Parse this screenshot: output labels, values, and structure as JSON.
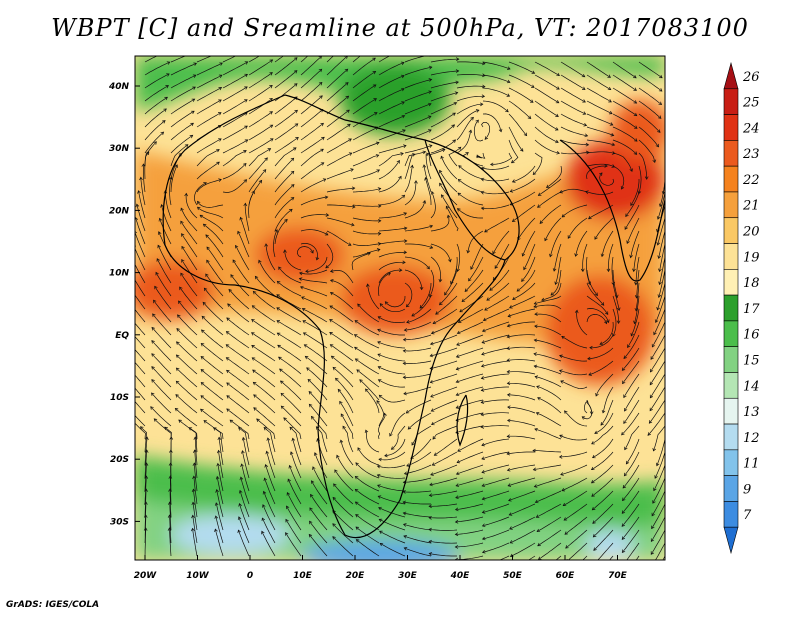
{
  "title": "WBPT [C] and Sreamline at 500hPa, VT: 2017083100",
  "footer": "GrADS: IGES/COLA",
  "lat_labels": [
    "40N",
    "30N",
    "20N",
    "10N",
    "EQ",
    "10S",
    "20S",
    "30S"
  ],
  "lon_labels": [
    "20W",
    "10W",
    "0",
    "10E",
    "20E",
    "30E",
    "40E",
    "50E",
    "60E",
    "70E"
  ],
  "colorbar": {
    "labels": [
      "26",
      "25",
      "24",
      "23",
      "22",
      "21",
      "20",
      "19",
      "18",
      "17",
      "16",
      "15",
      "14",
      "13",
      "12",
      "11",
      "9",
      "7"
    ],
    "colors_top_to_bottom": [
      "#a50f15",
      "#c81e14",
      "#e03214",
      "#eb5a1e",
      "#f5821e",
      "#f5a03c",
      "#fac864",
      "#fde296",
      "#fff0b4",
      "#2ca02c",
      "#4bbe4b",
      "#82d282",
      "#b4e6b4",
      "#e6f5f0",
      "#b4dcf0",
      "#82c3eb",
      "#5aa5e6",
      "#3c8ce1",
      "#1e6ed2"
    ]
  },
  "map_colors": {
    "orange_light": "#fde296",
    "orange_mid": "#f5a03c",
    "orange_dark": "#eb5a1e",
    "red": "#e03214",
    "green": "#4bbe4b",
    "green_light": "#82d282",
    "cyan": "#b4dcf0",
    "blue": "#5aa5e6"
  }
}
